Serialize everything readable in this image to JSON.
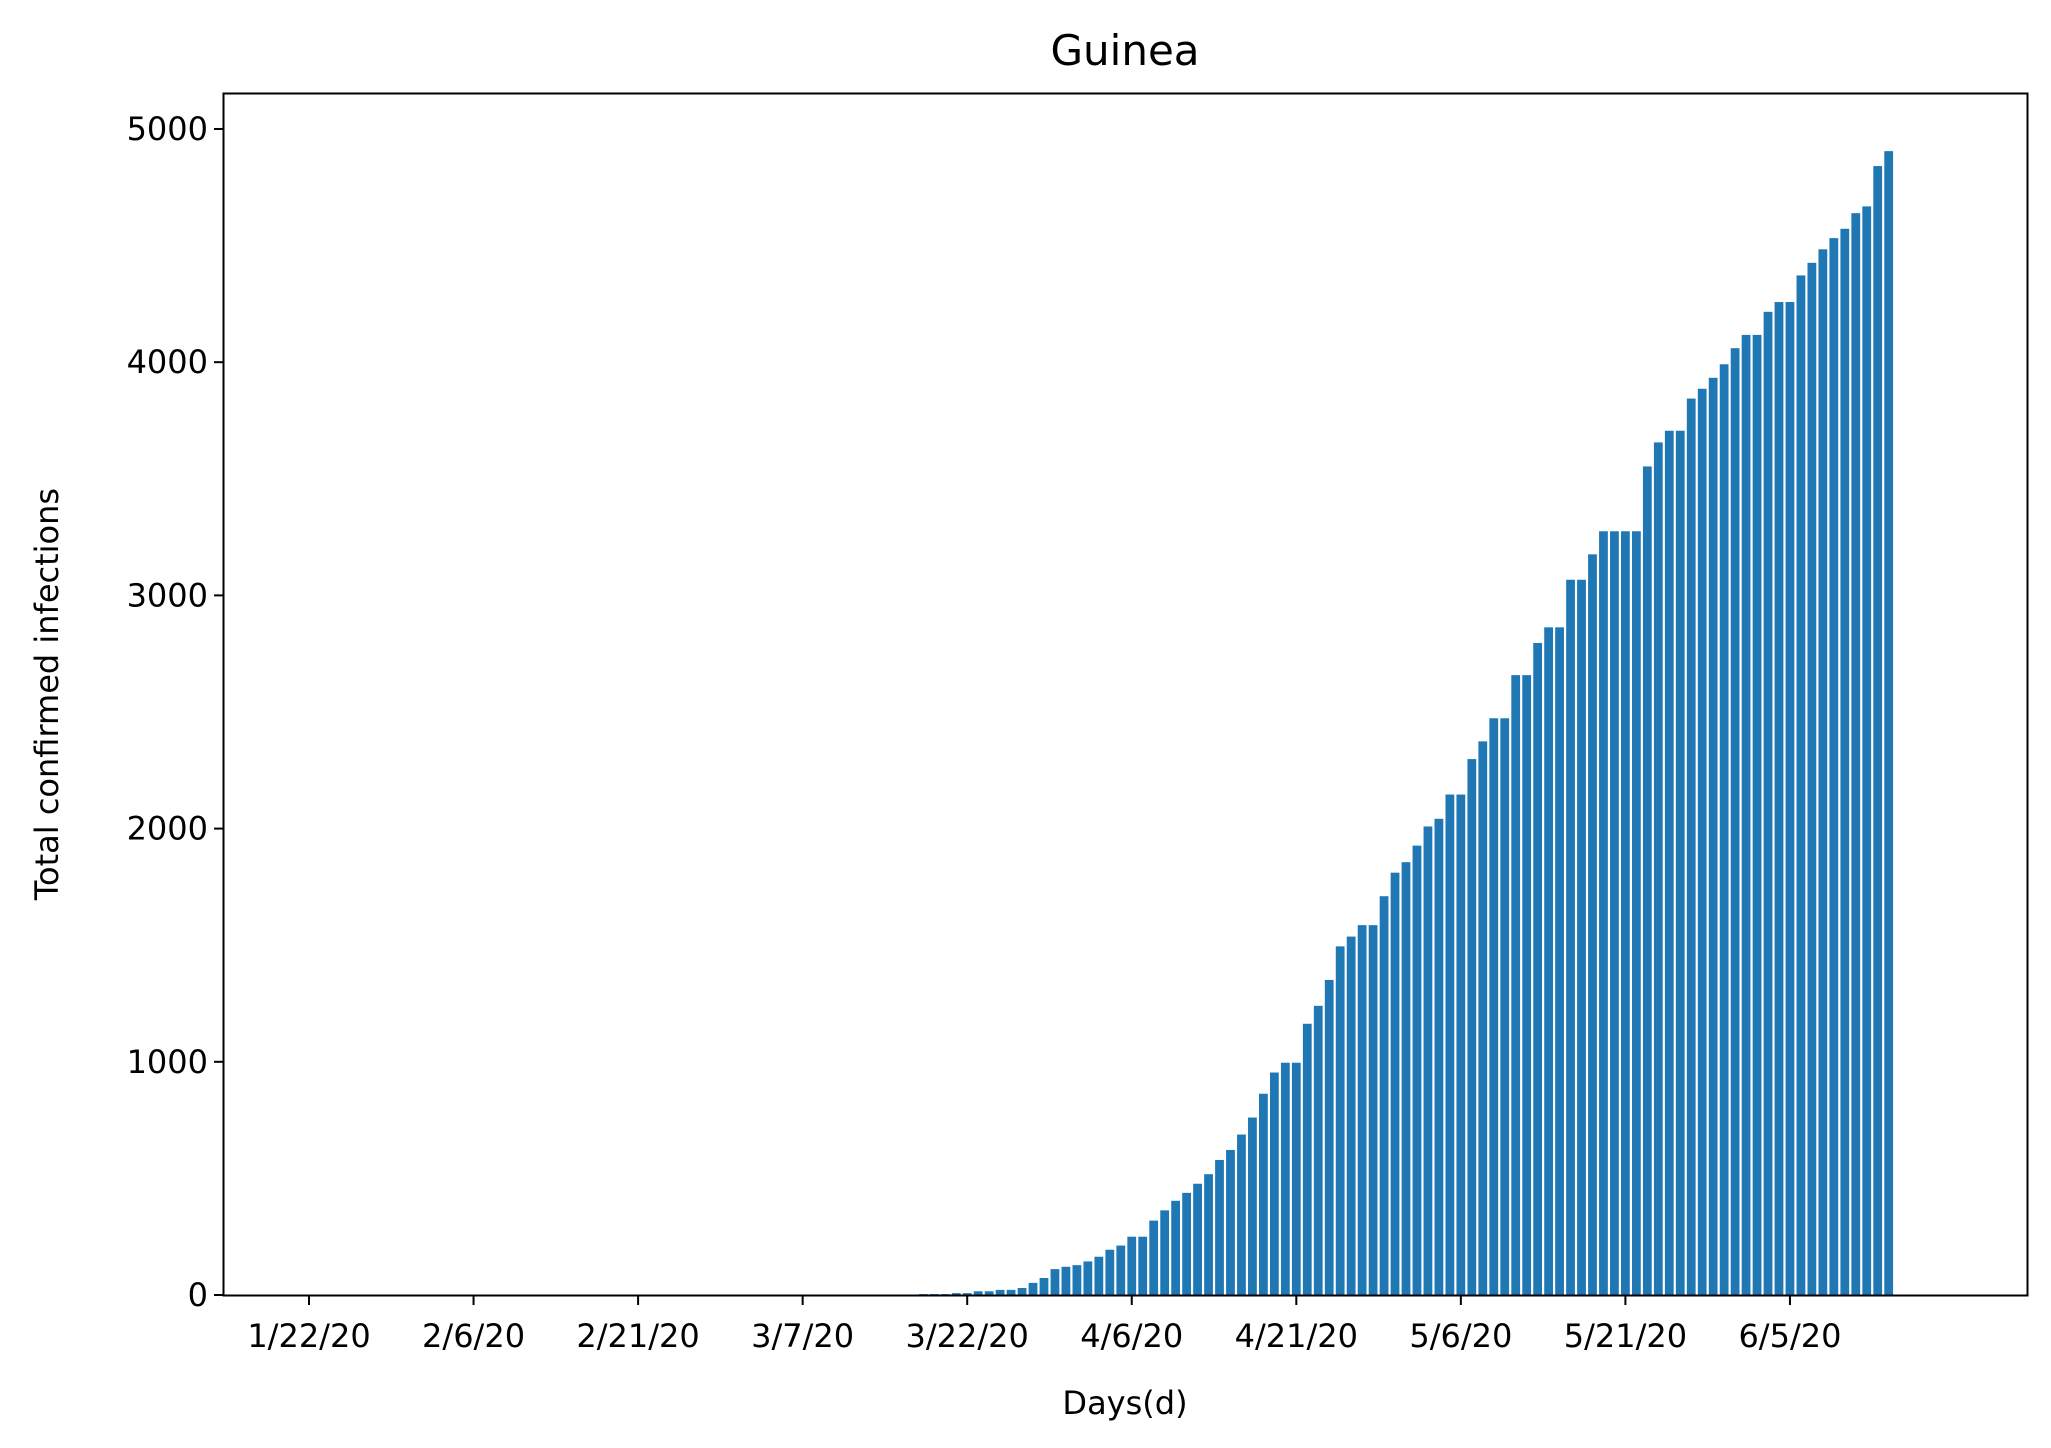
{
  "chart_data": {
    "type": "bar",
    "title": "Guinea",
    "xlabel": "Days(d)",
    "ylabel": "Total confirmed infections",
    "bar_color": "#1f77b4",
    "ylim": [
      0,
      5150
    ],
    "yticks": [
      0,
      1000,
      2000,
      3000,
      4000,
      5000
    ],
    "start_date": "1/22/20",
    "xtick_labels": [
      "1/22/20",
      "2/6/20",
      "2/21/20",
      "3/7/20",
      "3/22/20",
      "4/6/20",
      "4/21/20",
      "5/6/20",
      "5/21/20",
      "6/5/20"
    ],
    "xtick_day_offsets": [
      0,
      15,
      30,
      45,
      60,
      75,
      90,
      105,
      120,
      135
    ],
    "values": [
      0,
      0,
      0,
      0,
      0,
      0,
      0,
      0,
      0,
      0,
      0,
      0,
      0,
      0,
      0,
      0,
      0,
      0,
      0,
      0,
      0,
      0,
      0,
      0,
      0,
      0,
      0,
      0,
      0,
      0,
      0,
      0,
      0,
      0,
      0,
      0,
      0,
      0,
      0,
      0,
      0,
      0,
      0,
      0,
      0,
      0,
      0,
      0,
      0,
      0,
      0,
      1,
      1,
      1,
      2,
      2,
      4,
      4,
      4,
      8,
      8,
      16,
      16,
      22,
      22,
      30,
      52,
      73,
      111,
      121,
      128,
      144,
      164,
      194,
      212,
      250,
      250,
      319,
      363,
      404,
      438,
      477,
      518,
      579,
      622,
      688,
      761,
      863,
      954,
      996,
      996,
      1163,
      1240,
      1351,
      1495,
      1537,
      1586,
      1586,
      1710,
      1811,
      1856,
      1927,
      2009,
      2042,
      2146,
      2146,
      2298,
      2374,
      2473,
      2473,
      2658,
      2658,
      2796,
      2863,
      2863,
      3067,
      3067,
      3176,
      3275,
      3275,
      3275,
      3275,
      3553,
      3656,
      3706,
      3706,
      3844,
      3886,
      3933,
      3991,
      4060,
      4117,
      4117,
      4216,
      4258,
      4258,
      4372,
      4426,
      4484,
      4532,
      4572,
      4639,
      4668,
      4841,
      4905
    ]
  }
}
